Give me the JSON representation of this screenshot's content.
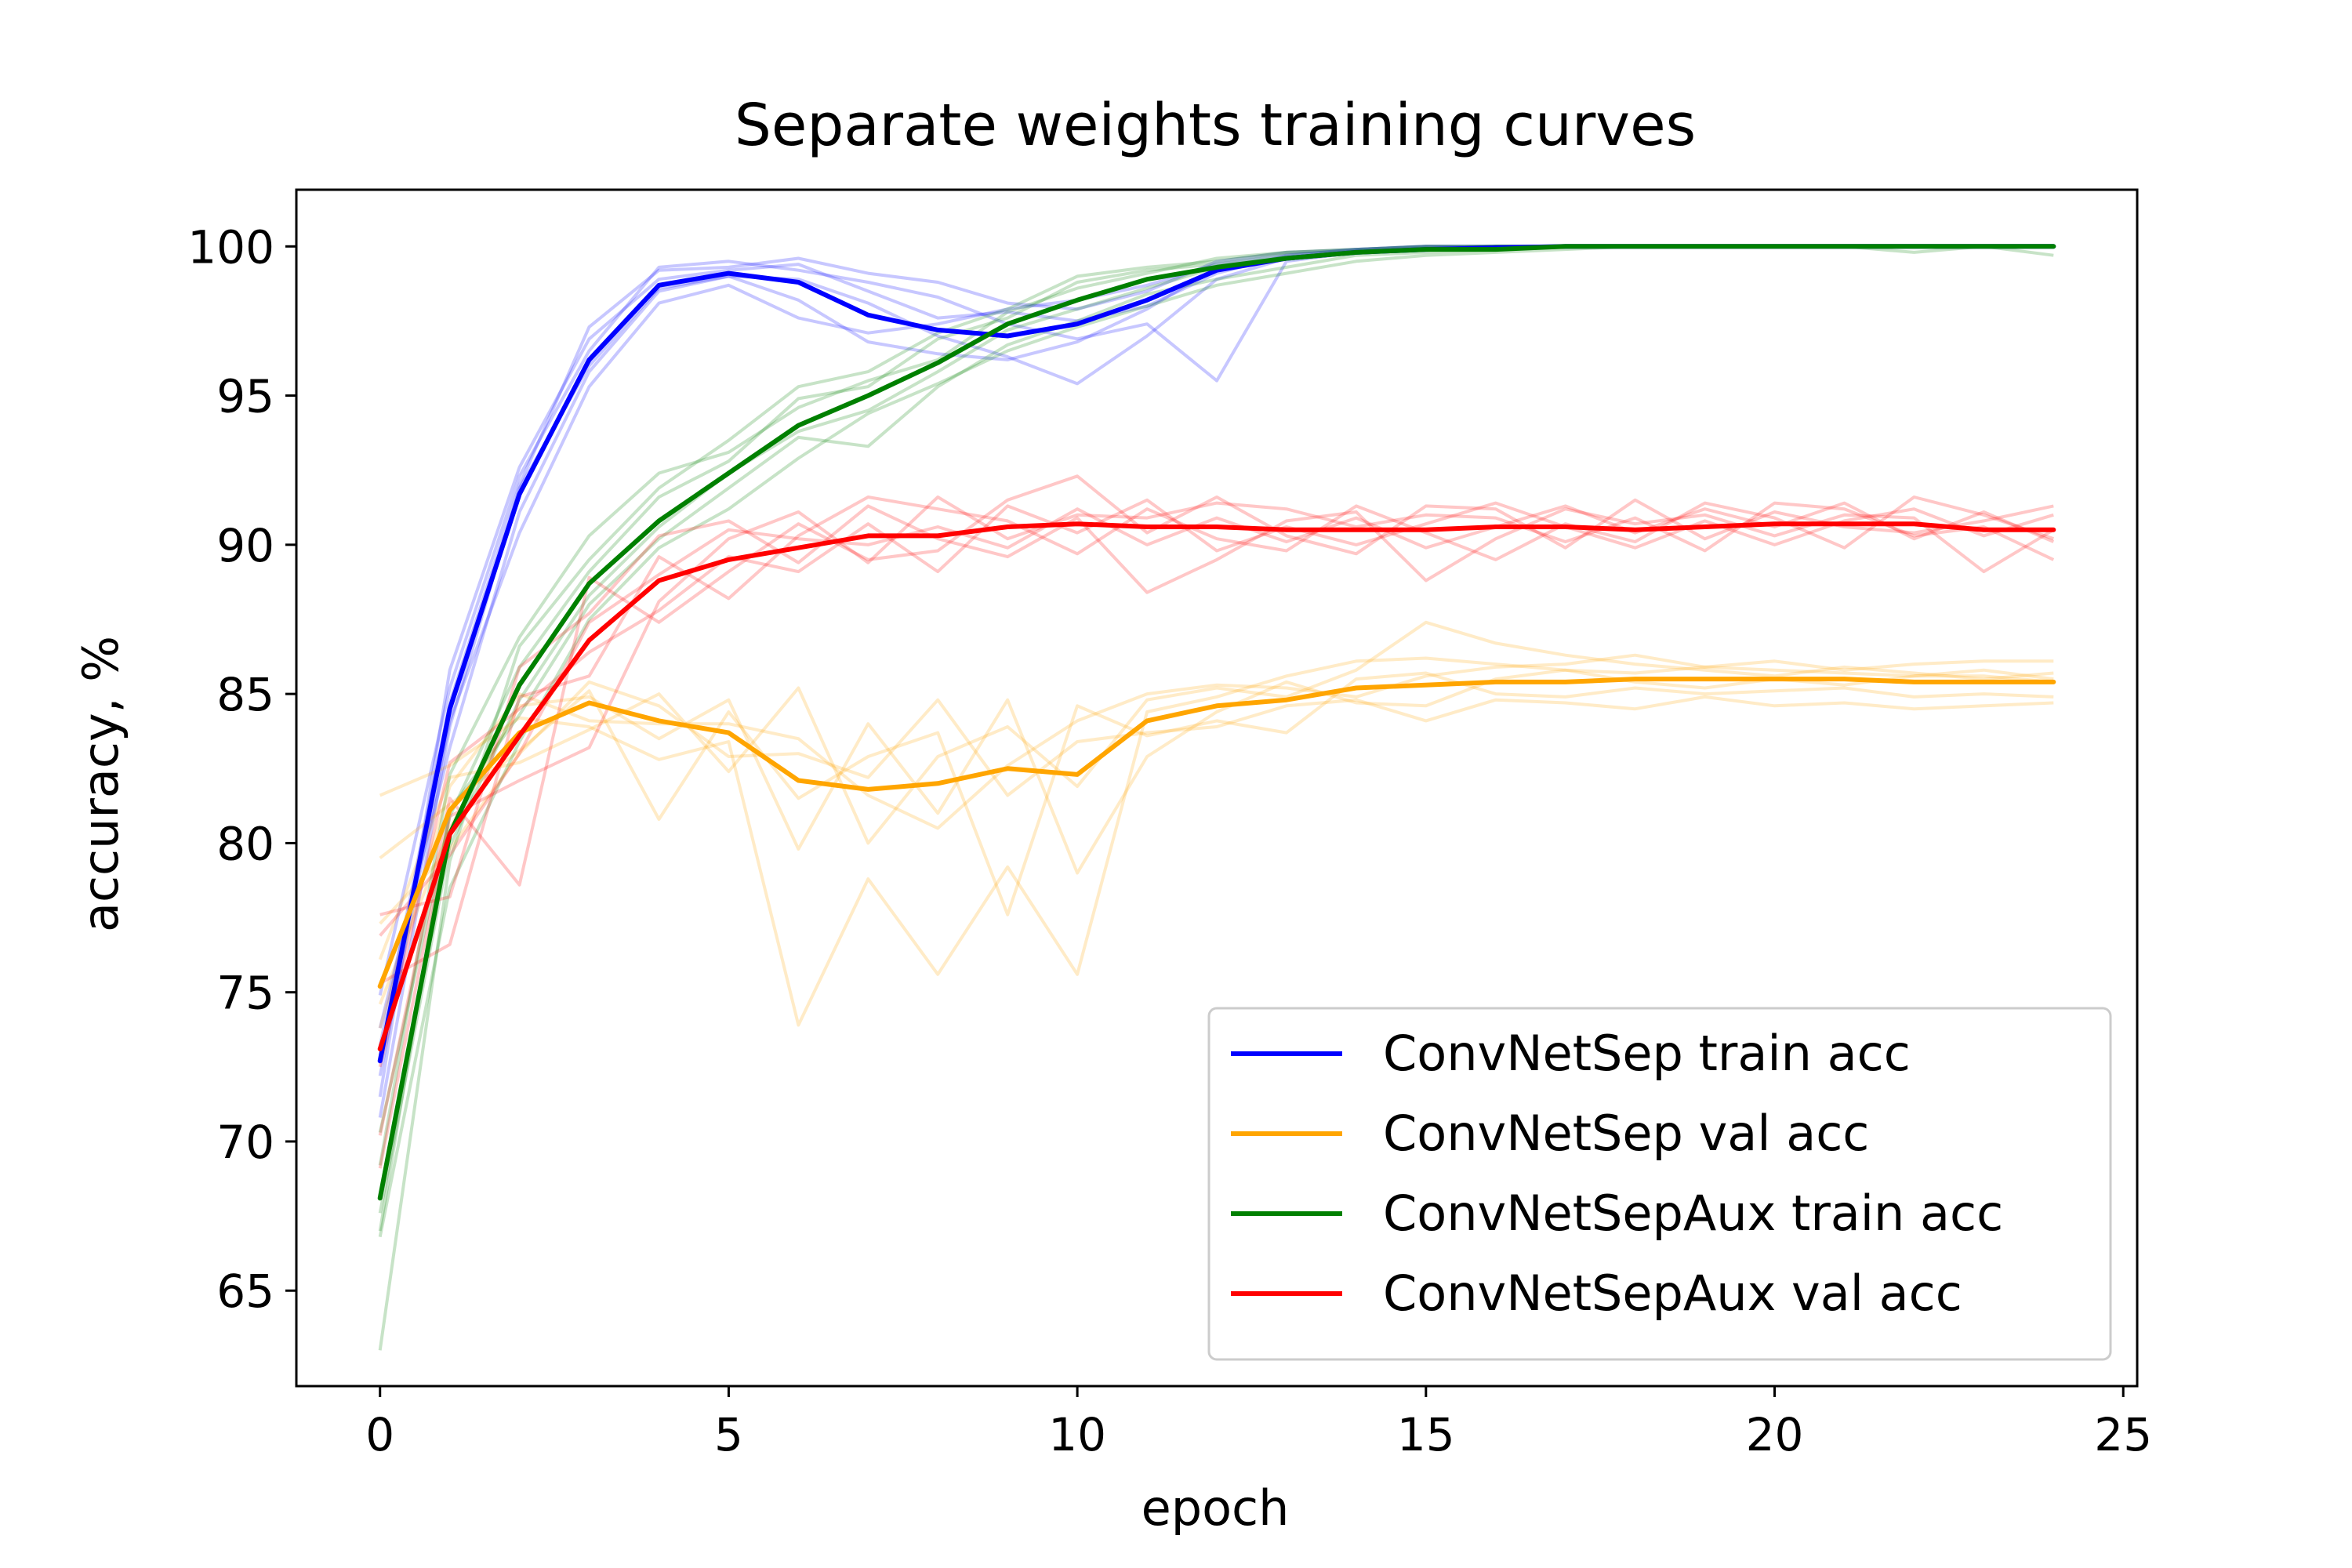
{
  "chart_data": {
    "type": "line",
    "title": "Separate weights training curves",
    "xlabel": "epoch",
    "ylabel": "accuracy, %",
    "xlim": [
      -1.2,
      25.2
    ],
    "ylim": [
      61.8,
      101.9
    ],
    "xticks": [
      0,
      5,
      10,
      15,
      20,
      25
    ],
    "yticks": [
      65,
      70,
      75,
      80,
      85,
      90,
      95,
      100
    ],
    "grid": false,
    "legend_position": "lower right",
    "x": [
      0,
      1,
      2,
      3,
      4,
      5,
      6,
      7,
      8,
      9,
      10,
      11,
      12,
      13,
      14,
      15,
      16,
      17,
      18,
      19,
      20,
      21,
      22,
      23,
      24
    ],
    "series": [
      {
        "name": "ConvNetSep train acc",
        "color": "#0000ff",
        "values": [
          72.7,
          84.5,
          91.7,
          96.2,
          98.7,
          99.1,
          98.8,
          97.7,
          97.2,
          97.0,
          97.4,
          98.2,
          99.2,
          99.6,
          99.8,
          99.9,
          99.95,
          100.0,
          100.0,
          100.0,
          100.0,
          100.0,
          100.0,
          100.0,
          100.0
        ],
        "runs": [
          [
            71.5,
            85.8,
            92.6,
            96.9,
            98.9,
            99.2,
            99.4,
            98.5,
            97.6,
            97.8,
            97.5,
            98.0,
            99.1,
            99.7,
            99.9,
            100,
            100,
            100,
            100,
            100,
            100,
            100,
            100,
            100,
            100
          ],
          [
            73.8,
            83.2,
            91.1,
            95.8,
            98.5,
            99.0,
            98.2,
            96.8,
            96.4,
            96.2,
            96.8,
            97.9,
            99.3,
            99.6,
            99.8,
            99.9,
            100,
            100,
            100,
            100,
            100,
            100,
            100,
            100,
            100
          ],
          [
            72.2,
            84.1,
            90.4,
            95.3,
            98.1,
            98.7,
            97.6,
            97.1,
            97.4,
            97.9,
            98.2,
            98.7,
            99.4,
            99.7,
            99.9,
            100,
            100,
            100,
            100,
            100,
            100,
            100,
            100,
            100,
            100
          ],
          [
            74.9,
            85.2,
            92.3,
            96.5,
            99.3,
            99.5,
            99.2,
            98.8,
            98.3,
            97.4,
            96.9,
            97.4,
            95.5,
            99.5,
            99.8,
            99.9,
            100,
            100,
            100,
            100,
            100,
            100,
            100,
            100,
            100
          ],
          [
            70.8,
            83.9,
            91.9,
            96.0,
            98.6,
            99.0,
            98.9,
            98.1,
            97.0,
            96.3,
            95.4,
            97.0,
            98.9,
            99.6,
            99.8,
            99.9,
            100,
            100,
            100,
            100,
            100,
            100,
            100,
            100,
            100
          ],
          [
            73.2,
            84.7,
            92.0,
            97.3,
            99.2,
            99.3,
            99.6,
            99.1,
            98.8,
            98.1,
            97.9,
            98.5,
            99.5,
            99.8,
            99.9,
            100,
            100,
            100,
            100,
            100,
            100,
            100,
            100,
            100,
            100
          ]
        ]
      },
      {
        "name": "ConvNetSep val acc",
        "color": "#ffa500",
        "values": [
          75.2,
          81.1,
          83.7,
          84.7,
          84.1,
          83.7,
          82.1,
          81.8,
          82.0,
          82.5,
          82.3,
          84.1,
          84.6,
          84.8,
          85.2,
          85.3,
          85.4,
          85.4,
          85.5,
          85.5,
          85.5,
          85.5,
          85.4,
          85.4,
          85.4
        ],
        "runs": [
          [
            81.6,
            82.6,
            84.2,
            83.9,
            82.8,
            83.4,
            73.9,
            78.8,
            75.6,
            79.2,
            75.6,
            84.4,
            84.9,
            85.6,
            86.1,
            86.2,
            86.0,
            85.8,
            85.7,
            85.9,
            85.8,
            85.7,
            85.6,
            85.6,
            85.4
          ],
          [
            79.5,
            81.3,
            83.1,
            85.1,
            80.8,
            84.4,
            81.5,
            82.9,
            83.7,
            77.6,
            84.6,
            83.6,
            84.1,
            83.7,
            85.5,
            85.7,
            85.0,
            84.9,
            85.2,
            85.0,
            85.1,
            85.2,
            84.9,
            85.0,
            84.9
          ],
          [
            76.1,
            82.2,
            82.7,
            83.8,
            85.0,
            82.4,
            85.2,
            80.0,
            82.9,
            83.9,
            81.9,
            84.8,
            85.2,
            84.9,
            85.8,
            87.4,
            86.7,
            86.3,
            86.0,
            85.8,
            85.6,
            85.9,
            85.7,
            85.5,
            85.7
          ],
          [
            74.6,
            80.5,
            84.6,
            84.9,
            83.5,
            84.8,
            79.8,
            84.0,
            81.0,
            84.8,
            79.0,
            82.9,
            84.4,
            85.4,
            84.7,
            84.6,
            85.5,
            85.8,
            85.4,
            85.2,
            85.5,
            85.3,
            85.6,
            85.8,
            85.5
          ],
          [
            77.3,
            79.8,
            83.0,
            85.4,
            84.6,
            82.9,
            83.0,
            82.2,
            84.8,
            81.6,
            83.4,
            83.7,
            83.9,
            84.6,
            84.8,
            84.1,
            84.8,
            84.7,
            84.5,
            84.9,
            84.6,
            84.7,
            84.5,
            84.6,
            84.7
          ],
          [
            73.8,
            81.9,
            85.0,
            84.1,
            84.0,
            84.0,
            83.5,
            81.6,
            80.5,
            82.6,
            84.1,
            85.0,
            85.3,
            85.2,
            84.9,
            85.6,
            85.9,
            86.0,
            86.3,
            85.9,
            86.1,
            85.8,
            86.0,
            86.1,
            86.1
          ]
        ]
      },
      {
        "name": "ConvNetSepAux train acc",
        "color": "#008000",
        "values": [
          68.1,
          80.3,
          85.3,
          88.7,
          90.8,
          92.4,
          94.0,
          95.0,
          96.1,
          97.4,
          98.2,
          98.9,
          99.3,
          99.6,
          99.8,
          99.9,
          99.9,
          100.0,
          100.0,
          100.0,
          100.0,
          100.0,
          100.0,
          100.0,
          100.0
        ],
        "runs": [
          [
            63.0,
            79.4,
            86.6,
            89.5,
            91.9,
            93.5,
            95.3,
            95.8,
            97.1,
            97.9,
            99.0,
            99.3,
            99.5,
            99.8,
            99.9,
            100,
            100,
            100,
            100,
            100,
            100,
            100,
            100,
            100,
            99.7
          ],
          [
            67.0,
            81.1,
            84.3,
            88.0,
            90.2,
            91.9,
            93.6,
            93.3,
            95.3,
            96.7,
            97.5,
            98.4,
            98.9,
            99.3,
            99.7,
            99.8,
            99.9,
            100,
            100,
            100,
            100,
            100,
            100,
            100,
            100
          ],
          [
            69.2,
            82.3,
            86.9,
            90.3,
            92.4,
            93.1,
            94.6,
            95.5,
            96.2,
            97.8,
            98.6,
            99.1,
            99.6,
            99.8,
            99.9,
            100,
            100,
            100,
            100,
            100,
            100,
            100,
            100,
            100,
            100
          ],
          [
            66.8,
            78.5,
            83.4,
            87.5,
            89.9,
            91.2,
            92.9,
            94.4,
            95.4,
            96.5,
            97.3,
            98.0,
            98.7,
            99.1,
            99.5,
            99.7,
            99.8,
            99.9,
            100,
            100,
            100,
            100,
            100,
            100,
            100
          ],
          [
            70.3,
            80.9,
            85.9,
            89.1,
            91.6,
            92.8,
            94.9,
            95.3,
            96.9,
            97.6,
            98.8,
            99.2,
            99.4,
            99.7,
            99.8,
            99.9,
            100,
            100,
            100,
            100,
            100,
            100,
            100,
            100,
            100
          ],
          [
            67.6,
            79.9,
            84.8,
            88.3,
            90.6,
            92.4,
            93.8,
            94.5,
            95.8,
            97.2,
            97.9,
            98.6,
            99.3,
            99.6,
            99.8,
            99.9,
            100,
            100,
            100,
            100,
            100,
            100,
            99.8,
            100,
            100
          ]
        ]
      },
      {
        "name": "ConvNetSepAux val acc",
        "color": "#ff0000",
        "values": [
          73.1,
          80.3,
          83.6,
          86.8,
          88.8,
          89.5,
          89.9,
          90.3,
          90.3,
          90.6,
          90.7,
          90.6,
          90.6,
          90.5,
          90.5,
          90.5,
          90.6,
          90.6,
          90.5,
          90.6,
          90.7,
          90.7,
          90.7,
          90.5,
          90.5
        ],
        "runs": [
          [
            77.6,
            78.2,
            85.9,
            87.7,
            90.3,
            90.8,
            89.4,
            91.3,
            90.2,
            89.6,
            90.9,
            88.4,
            89.5,
            90.8,
            91.1,
            88.8,
            90.2,
            91.2,
            90.7,
            91.0,
            90.3,
            91.0,
            90.9,
            89.1,
            90.5
          ],
          [
            70.2,
            81.5,
            78.6,
            88.9,
            87.4,
            89.1,
            90.7,
            89.5,
            89.8,
            91.5,
            92.3,
            90.4,
            91.6,
            90.3,
            89.7,
            91.3,
            91.2,
            89.9,
            91.5,
            90.2,
            91.1,
            90.6,
            90.4,
            90.8,
            91.3
          ],
          [
            75.3,
            76.6,
            84.9,
            85.6,
            89.6,
            88.2,
            90.3,
            91.6,
            91.2,
            90.8,
            89.7,
            91.2,
            90.2,
            89.8,
            91.3,
            90.4,
            89.5,
            90.7,
            90.1,
            91.4,
            90.9,
            89.9,
            91.6,
            91.0,
            90.2
          ],
          [
            69.1,
            80.9,
            82.1,
            83.2,
            88.1,
            90.2,
            91.1,
            89.4,
            91.6,
            90.2,
            91.0,
            90.9,
            91.4,
            91.2,
            90.6,
            91.0,
            90.9,
            90.1,
            90.9,
            89.8,
            91.4,
            91.2,
            90.3,
            90.6,
            89.5
          ],
          [
            72.5,
            82.7,
            84.5,
            86.4,
            87.8,
            89.6,
            89.1,
            90.7,
            89.1,
            91.3,
            90.4,
            91.5,
            89.8,
            90.6,
            90.0,
            90.7,
            91.4,
            90.6,
            89.9,
            90.8,
            90.0,
            90.8,
            91.2,
            90.3,
            91.0
          ],
          [
            76.9,
            79.6,
            83.0,
            87.4,
            89.0,
            90.5,
            90.2,
            90.0,
            90.6,
            89.9,
            91.2,
            90.0,
            90.9,
            90.1,
            90.9,
            89.9,
            90.6,
            91.3,
            90.4,
            91.2,
            90.6,
            91.4,
            90.2,
            91.1,
            90.1
          ]
        ]
      }
    ]
  }
}
